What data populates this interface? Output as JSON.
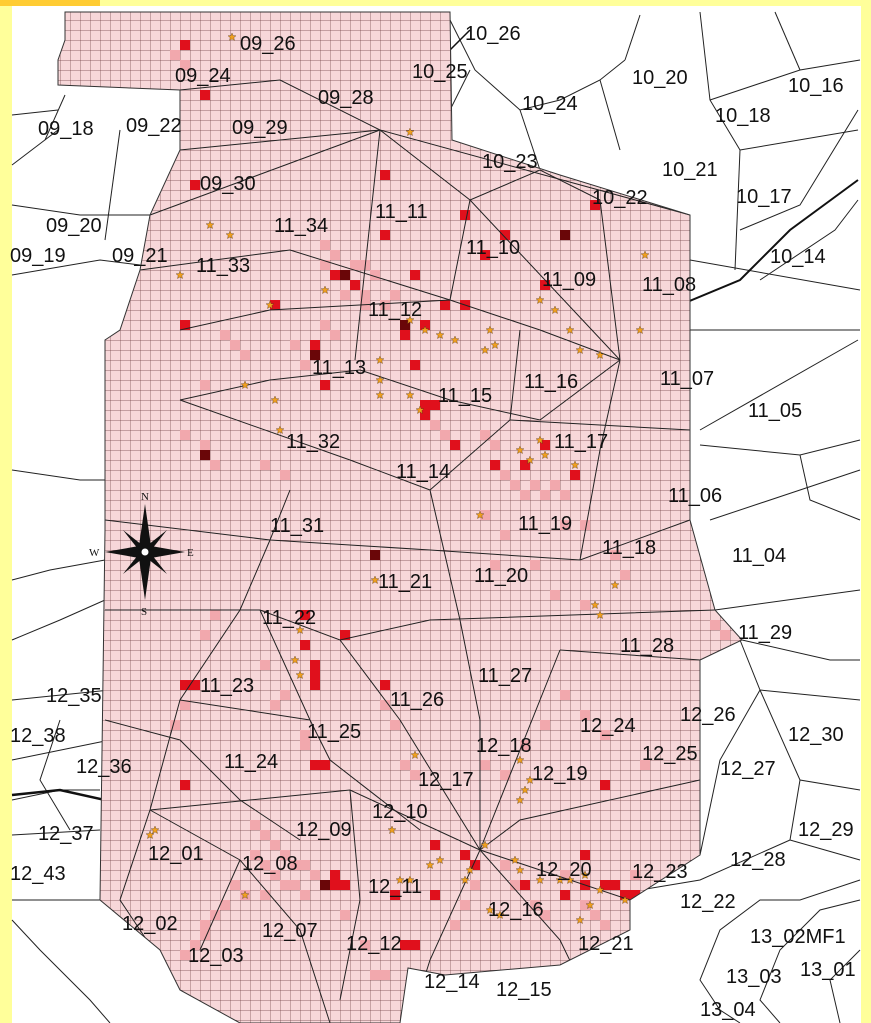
{
  "map": {
    "colors": {
      "grid_fill": "#f7d7d9",
      "grid_line": "#6e3f44",
      "density_light": "#f2a8ad",
      "density_mid": "#e0101c",
      "density_dark": "#6a0608",
      "star": "#f0a020",
      "frame": "#ffff9a"
    },
    "compass": {
      "north": "N",
      "south": "S",
      "east": "E",
      "west": "W"
    },
    "zone_labels": [
      "09_26",
      "09_24",
      "09_28",
      "09_18",
      "09_22",
      "09_29",
      "09_30",
      "09_20",
      "09_21",
      "09_19",
      "10_26",
      "10_25",
      "10_24",
      "10_20",
      "10_16",
      "10_18",
      "10_23",
      "10_21",
      "10_17",
      "10_22",
      "10_14",
      "11_34",
      "11_11",
      "11_10",
      "11_33",
      "11_09",
      "11_08",
      "11_12",
      "11_13",
      "11_15",
      "11_16",
      "11_07",
      "11_05",
      "11_32",
      "11_17",
      "11_14",
      "11_06",
      "11_31",
      "11_19",
      "11_18",
      "11_04",
      "11_21",
      "11_20",
      "11_22",
      "11_28",
      "11_29",
      "11_23",
      "11_27",
      "11_26",
      "11_25",
      "12_35",
      "12_38",
      "12_36",
      "11_24",
      "12_24",
      "12_26",
      "12_30",
      "12_18",
      "12_25",
      "12_27",
      "12_17",
      "12_19",
      "12_10",
      "12_09",
      "12_37",
      "12_01",
      "12_08",
      "12_29",
      "12_28",
      "12_43",
      "12_20",
      "12_23",
      "12_11",
      "12_16",
      "12_22",
      "12_02",
      "12_07",
      "12_12",
      "12_21",
      "12_03",
      "12_14",
      "12_15",
      "13_02MF1",
      "13_03",
      "13_01",
      "13_04"
    ]
  }
}
